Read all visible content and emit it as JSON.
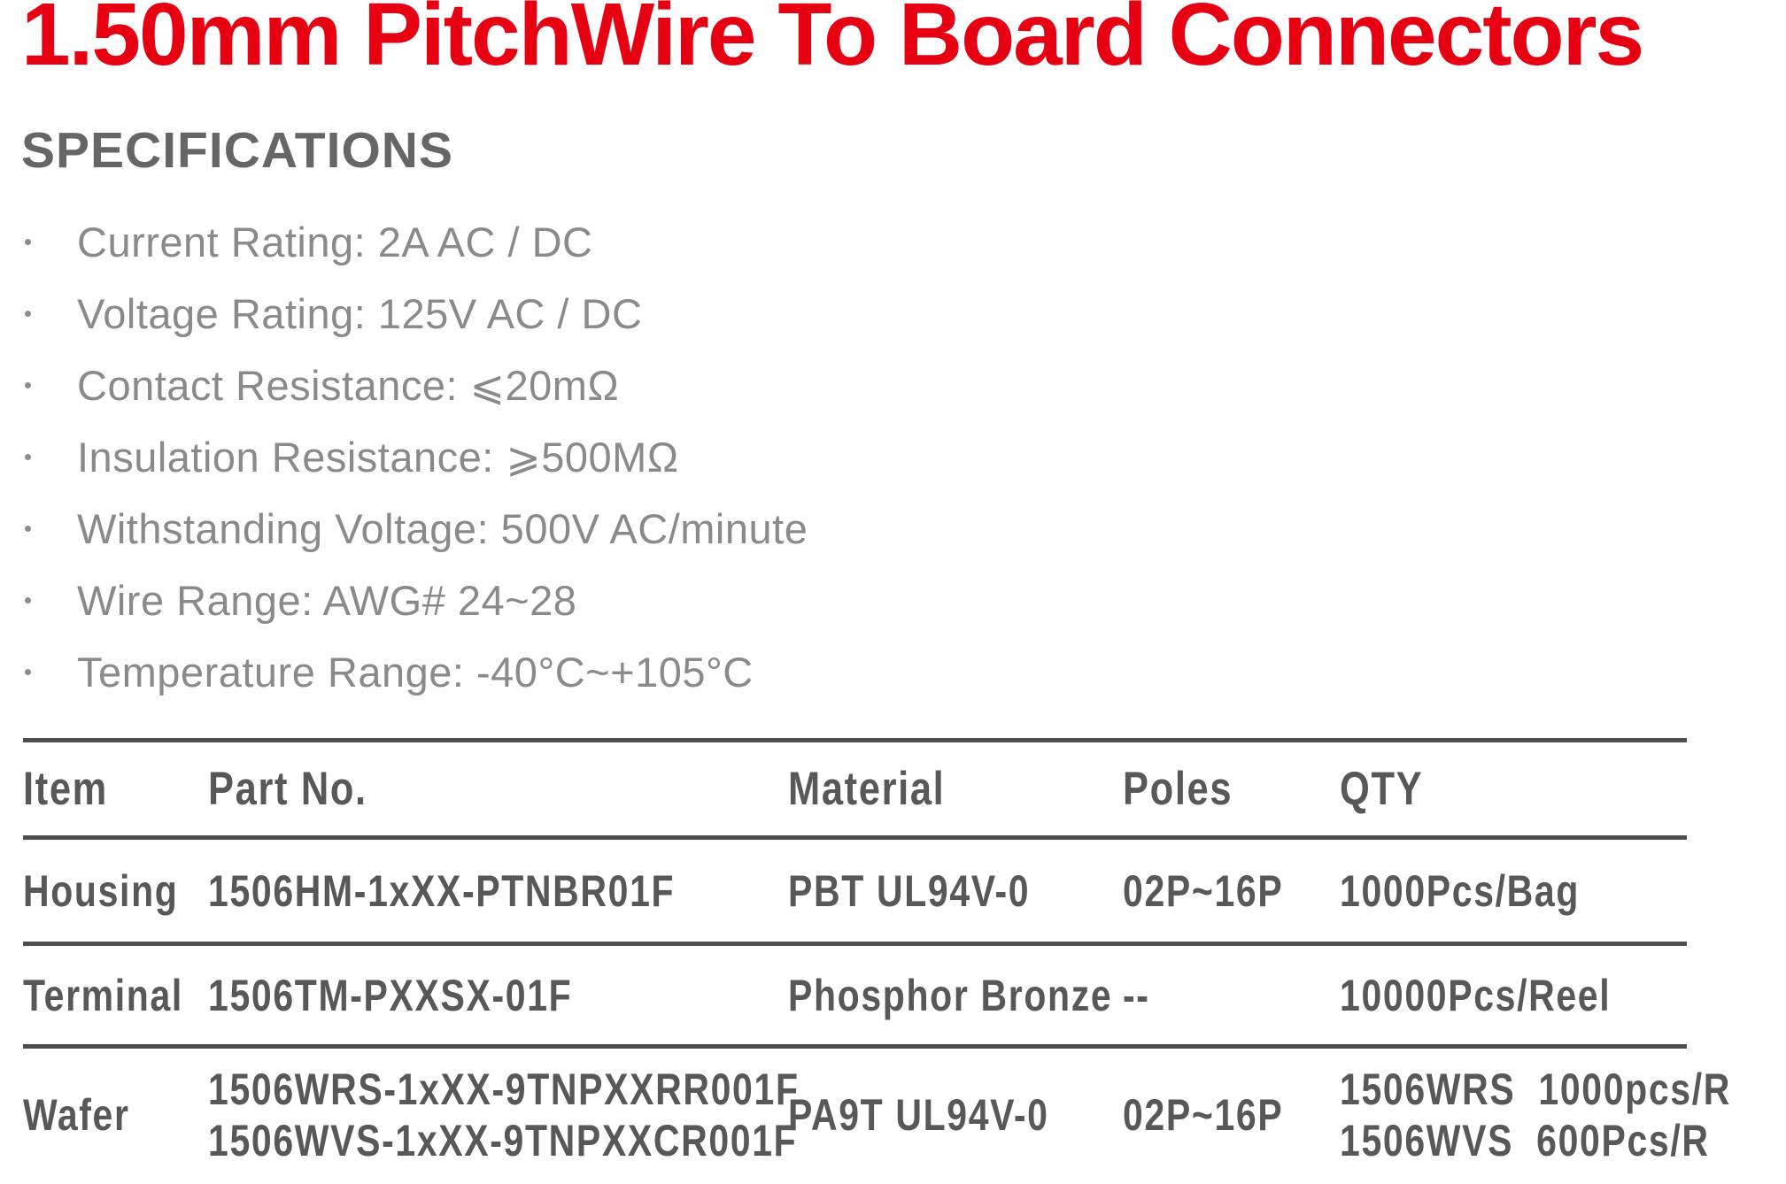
{
  "page": {
    "title": "1.50mm PitchWire To Board Connectors",
    "section_heading": "SPECIFICATIONS"
  },
  "specifications": [
    "Current Rating: 2A AC / DC",
    "Voltage Rating: 125V AC / DC",
    "Contact Resistance: ⩽20mΩ",
    "Insulation Resistance: ⩾500MΩ",
    "Withstanding Voltage: 500V AC/minute",
    "Wire Range: AWG# 24~28",
    "Temperature Range: -40°C~+105°C"
  ],
  "parts_table": {
    "columns": [
      "Item",
      "Part No.",
      "Material",
      "Poles",
      "QTY"
    ],
    "rows": [
      {
        "item": "Housing",
        "part_no": [
          "1506HM-1xXX-PTNBR01F"
        ],
        "material": "PBT UL94V-0",
        "poles": "02P~16P",
        "qty": [
          "1000Pcs/Bag"
        ]
      },
      {
        "item": "Terminal",
        "part_no": [
          "1506TM-PXXSX-01F"
        ],
        "material": "Phosphor Bronze",
        "poles": "--",
        "qty": [
          "10000Pcs/Reel"
        ]
      },
      {
        "item": "Wafer",
        "part_no": [
          "1506WRS-1xXX-9TNPXXRR001F",
          "1506WVS-1xXX-9TNPXXCR001F"
        ],
        "material": "PA9T UL94V-0",
        "poles": "02P~16P",
        "qty": [
          "1506WRS  1000pcs/R",
          "1506WVS  600Pcs/R"
        ]
      }
    ]
  },
  "colors": {
    "accent_red": "#e60012",
    "heading_gray": "#666666",
    "body_gray": "#8a8a8a",
    "table_text_gray": "#595757",
    "rule_gray": "#4d4d4d",
    "background": "#ffffff"
  }
}
